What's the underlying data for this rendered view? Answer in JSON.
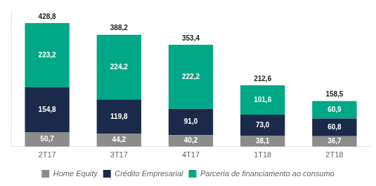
{
  "chart_data": {
    "type": "bar",
    "stacked": true,
    "categories": [
      "2T17",
      "3T17",
      "4T17",
      "1T18",
      "2T18"
    ],
    "series": [
      {
        "name": "Home Equity",
        "color": "#8c8c8c",
        "values": [
          50.7,
          44.2,
          40.2,
          38.1,
          36.7
        ],
        "value_labels": [
          "50,7",
          "44,2",
          "40,2",
          "38,1",
          "36,7"
        ]
      },
      {
        "name": "Crédito Empresarial",
        "color": "#1b2a4a",
        "values": [
          154.8,
          119.8,
          91.0,
          73.0,
          60.8
        ],
        "value_labels": [
          "154,8",
          "119,8",
          "91,0",
          "73,0",
          "60,8"
        ]
      },
      {
        "name": "Parceria de financiamento ao consumo",
        "color": "#00a887",
        "values": [
          223.2,
          224.2,
          222.2,
          101.6,
          60.9
        ],
        "value_labels": [
          "223,2",
          "224,2",
          "222,2",
          "101,6",
          "60,9"
        ]
      }
    ],
    "totals": [
      428.8,
      388.2,
      353.4,
      212.6,
      158.5
    ],
    "total_labels": [
      "428,8",
      "388,2",
      "353,4",
      "212,6",
      "158,5"
    ],
    "ylim": [
      0,
      470
    ],
    "grid": false,
    "legend": "bottom",
    "data_labels": true,
    "tick_labels": "x"
  }
}
